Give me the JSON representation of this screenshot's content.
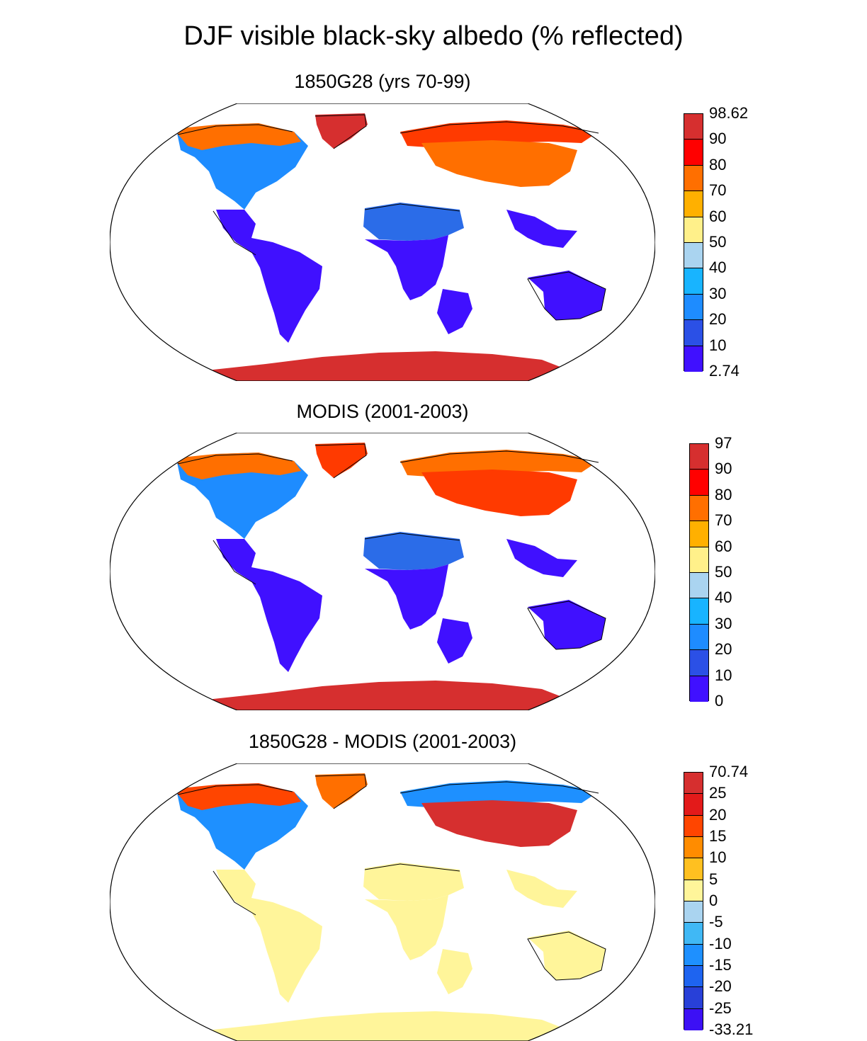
{
  "title": "DJF visible black-sky albedo (% reflected)",
  "panels": [
    {
      "title": "1850G28 (yrs 70-99)",
      "colorbar": {
        "labels": [
          "98.62",
          "90",
          "80",
          "70",
          "60",
          "50",
          "40",
          "30",
          "20",
          "10",
          "2.74"
        ],
        "colors": [
          "#d62f2f",
          "#ff0000",
          "#ff6f00",
          "#ffb000",
          "#fff08a",
          "#aad4f0",
          "#18b4ff",
          "#1e8cff",
          "#2b50e6",
          "#4010ff"
        ]
      },
      "fills": {
        "greenland": "#d62f2f",
        "antarctica": "#d62f2f",
        "tropics": "#4010ff",
        "africa_north": "#2b6ce8",
        "arctic": "#ff6f00",
        "asia_mid": "#ff6f00",
        "north_america_mid": "#1e8cff",
        "eurasia_north": "#ff3a00"
      }
    },
    {
      "title": "MODIS (2001-2003)",
      "colorbar": {
        "labels": [
          "97",
          "90",
          "80",
          "70",
          "60",
          "50",
          "40",
          "30",
          "20",
          "10",
          "0"
        ],
        "colors": [
          "#d62f2f",
          "#ff0000",
          "#ff6f00",
          "#ffb000",
          "#fff08a",
          "#aad4f0",
          "#18b4ff",
          "#1e8cff",
          "#2b50e6",
          "#4010ff"
        ]
      },
      "fills": {
        "greenland": "#ff3a00",
        "antarctica": "#d62f2f",
        "tropics": "#4010ff",
        "africa_north": "#2b6ce8",
        "arctic": "#ff6f00",
        "asia_mid": "#ff3a00",
        "north_america_mid": "#1e8cff",
        "eurasia_north": "#ff6f00"
      }
    },
    {
      "title": "1850G28 - MODIS (2001-2003)",
      "colorbar": {
        "labels": [
          "70.74",
          "25",
          "20",
          "15",
          "10",
          "5",
          "0",
          "-5",
          "-10",
          "-15",
          "-20",
          "-25",
          "-33.21"
        ],
        "colors": [
          "#d62f2f",
          "#e31a1a",
          "#ff4500",
          "#ff8c00",
          "#ffc020",
          "#fff59a",
          "#aad4f0",
          "#40b8f5",
          "#1e90ff",
          "#1e64f0",
          "#2840d8",
          "#3c10f5"
        ]
      },
      "fills": {
        "greenland": "#ff6f00",
        "antarctica": "#fff59a",
        "tropics": "#fff59a",
        "africa_north": "#fff59a",
        "arctic": "#ff4500",
        "asia_mid": "#d62f2f",
        "north_america_mid": "#1e90ff",
        "eurasia_north": "#1e90ff"
      }
    }
  ]
}
